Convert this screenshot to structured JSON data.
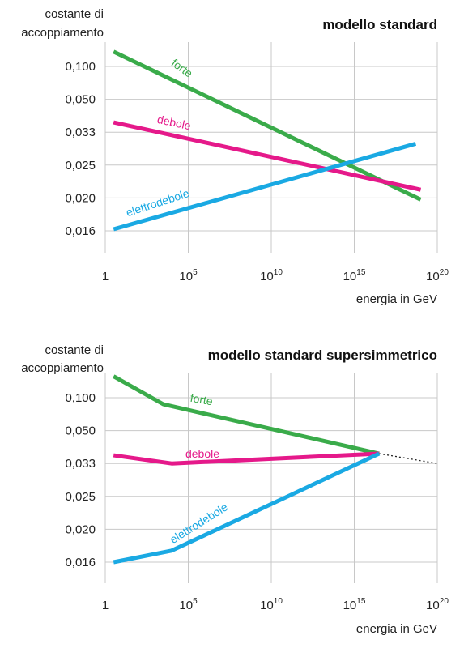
{
  "chart_data": [
    {
      "type": "line",
      "title": "modello standard",
      "ylabel_lines": [
        "costante di",
        "accoppiamento"
      ],
      "xlabel": "energia in GeV",
      "x_scale": "log10",
      "xlim": [
        1,
        1e+20
      ],
      "x_ticks": [
        {
          "value": 1,
          "base": "1",
          "exp": ""
        },
        {
          "value": 100000.0,
          "base": "10",
          "exp": "5"
        },
        {
          "value": 10000000000.0,
          "base": "10",
          "exp": "10"
        },
        {
          "value": 1000000000000000.0,
          "base": "10",
          "exp": "15"
        },
        {
          "value": 1e+20,
          "base": "10",
          "exp": "20"
        }
      ],
      "y_ticks": [
        "0,100",
        "0,050",
        "0,033",
        "0,025",
        "0,020",
        "0,016"
      ],
      "series": [
        {
          "name": "forte",
          "color": "#3aab4a",
          "points": [
            {
              "logx": 0.5,
              "y_tick": -0.45
            },
            {
              "logx": 19.0,
              "y_tick": 4.05
            }
          ]
        },
        {
          "name": "debole",
          "color": "#e5198a",
          "points": [
            {
              "logx": 0.5,
              "y_tick": 1.7
            },
            {
              "logx": 19.0,
              "y_tick": 3.75
            }
          ]
        },
        {
          "name": "elettrodebole",
          "color": "#1aa9e3",
          "points": [
            {
              "logx": 0.5,
              "y_tick": 4.95
            },
            {
              "logx": 18.7,
              "y_tick": 2.35
            }
          ]
        }
      ]
    },
    {
      "type": "line",
      "title": "modello standard supersimmetrico",
      "ylabel_lines": [
        "costante di",
        "accoppiamento"
      ],
      "xlabel": "energia in GeV",
      "x_scale": "log10",
      "xlim": [
        1,
        1e+20
      ],
      "x_ticks": [
        {
          "value": 1,
          "base": "1",
          "exp": ""
        },
        {
          "value": 100000.0,
          "base": "10",
          "exp": "5"
        },
        {
          "value": 10000000000.0,
          "base": "10",
          "exp": "10"
        },
        {
          "value": 1000000000000000.0,
          "base": "10",
          "exp": "15"
        },
        {
          "value": 1e+20,
          "base": "10",
          "exp": "20"
        }
      ],
      "y_ticks": [
        "0,100",
        "0,050",
        "0,033",
        "0,025",
        "0,020",
        "0,016"
      ],
      "series": [
        {
          "name": "forte",
          "color": "#3aab4a",
          "points": [
            {
              "logx": 0.5,
              "y_tick": -0.65
            },
            {
              "logx": 3.5,
              "y_tick": 0.2
            },
            {
              "logx": 16.5,
              "y_tick": 1.7
            }
          ]
        },
        {
          "name": "debole",
          "color": "#e5198a",
          "points": [
            {
              "logx": 0.5,
              "y_tick": 1.75
            },
            {
              "logx": 4.0,
              "y_tick": 2.0
            },
            {
              "logx": 16.5,
              "y_tick": 1.7
            }
          ]
        },
        {
          "name": "elettrodebole",
          "color": "#1aa9e3",
          "points": [
            {
              "logx": 0.5,
              "y_tick": 5.0
            },
            {
              "logx": 4.0,
              "y_tick": 4.65
            },
            {
              "logx": 16.5,
              "y_tick": 1.7
            }
          ]
        }
      ],
      "extrapolation": {
        "style": "dotted",
        "color": "#222222",
        "points": [
          {
            "logx": 16.5,
            "y_tick": 1.7
          },
          {
            "logx": 20.0,
            "y_tick": 2.0
          }
        ]
      }
    }
  ]
}
